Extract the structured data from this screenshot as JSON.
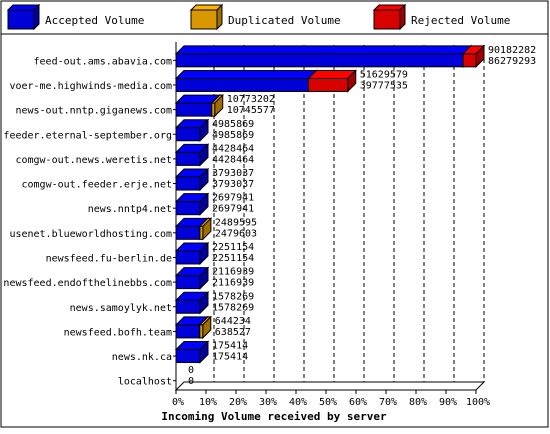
{
  "chart_data": {
    "type": "bar",
    "orientation": "horizontal",
    "stacked": true,
    "xlabel": "Incoming Volume received by server",
    "xlim": [
      0,
      100
    ],
    "x_ticks": [
      "0%",
      "10%",
      "20%",
      "30%",
      "40%",
      "50%",
      "60%",
      "70%",
      "80%",
      "90%",
      "100%"
    ],
    "grid": "vertical dashed",
    "legend_position": "top",
    "series": [
      {
        "name": "Accepted Volume",
        "color": "#0000ff"
      },
      {
        "name": "Duplicated Volume",
        "color": "#ffb300"
      },
      {
        "name": "Rejected Volume",
        "color": "#ff0000"
      }
    ],
    "categories": [
      "feed-out.ams.abavia.com",
      "voer-me.highwinds-media.com",
      "news-out.nntp.giganews.com",
      "feeder.eternal-september.org",
      "comgw-out.news.weretis.net",
      "comgw-out.feeder.erje.net",
      "news.nntp4.net",
      "usenet.blueworldhosting.com",
      "newsfeed.fu-berlin.de",
      "newsfeed.endofthelinebbs.com",
      "news.samoylyk.net",
      "newsfeed.bofh.team",
      "news.nk.ca",
      "localhost"
    ],
    "total_offered": [
      90182282,
      51629579,
      10773202,
      4985869,
      4428464,
      3793037,
      2697941,
      2489595,
      2251154,
      2116939,
      1578269,
      644234,
      175414,
      0
    ],
    "total_accepted": [
      86279293,
      39777535,
      10745577,
      4985869,
      4428464,
      3793037,
      2697941,
      2479603,
      2251154,
      2116939,
      1578269,
      638527,
      175414,
      0
    ],
    "accepted": [
      86279293,
      39777535,
      10745577,
      4985869,
      4428464,
      3793037,
      2697941,
      2479603,
      2251154,
      2116939,
      1578269,
      638527,
      175414,
      0
    ],
    "duplicated": [
      0,
      0,
      27625,
      0,
      0,
      0,
      0,
      9992,
      0,
      0,
      0,
      5707,
      0,
      0
    ],
    "rejected": [
      3902989,
      11852044,
      0,
      0,
      0,
      0,
      0,
      0,
      0,
      0,
      0,
      0,
      0,
      0
    ]
  }
}
